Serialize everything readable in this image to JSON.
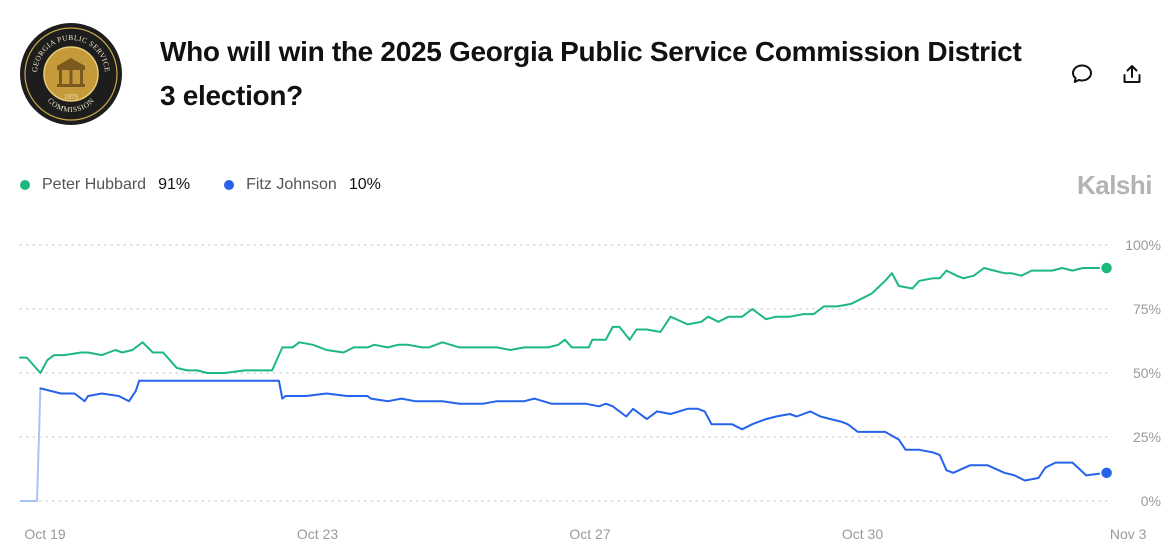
{
  "header": {
    "title": "Who will win the 2025 Georgia Public Service Commission District 3 election?",
    "seal": {
      "top_text": "GEORGIA PUBLIC SERVICE",
      "year": "1879",
      "bottom_text": "COMMISSION"
    }
  },
  "brand": "Kalshi",
  "actions": {
    "comment_icon": "comment-icon",
    "share_icon": "share-icon"
  },
  "legend": [
    {
      "name": "Peter Hubbard",
      "value": "91%",
      "color": "#1db87e"
    },
    {
      "name": "Fitz Johnson",
      "value": "10%",
      "color": "#2563eb"
    }
  ],
  "chart_data": {
    "type": "line",
    "title": "",
    "xlabel": "",
    "ylabel": "",
    "x_ticks": [
      {
        "label": "Oct 19",
        "day": 0
      },
      {
        "label": "Oct 23",
        "day": 4
      },
      {
        "label": "Oct 27",
        "day": 8
      },
      {
        "label": "Oct 30",
        "day": 12
      },
      {
        "label": "Nov 3",
        "day": 15.9
      }
    ],
    "y_ticks": [
      "100%",
      "75%",
      "50%",
      "25%",
      "0%"
    ],
    "xlim": [
      0,
      16
    ],
    "ylim": [
      0,
      100
    ],
    "grid": true,
    "series": [
      {
        "name": "Peter Hubbard",
        "color": "#1db87e",
        "x": [
          0,
          0.1,
          0.3,
          0.4,
          0.5,
          0.65,
          0.9,
          1.0,
          1.2,
          1.4,
          1.5,
          1.65,
          1.8,
          1.95,
          2.1,
          2.2,
          2.3,
          2.45,
          2.6,
          2.75,
          3.0,
          3.3,
          3.5,
          3.7,
          3.8,
          3.85,
          4.0,
          4.1,
          4.3,
          4.5,
          4.75,
          4.9,
          5.0,
          5.1,
          5.2,
          5.4,
          5.55,
          5.7,
          5.9,
          6.0,
          6.2,
          6.45,
          6.6,
          6.8,
          7.0,
          7.2,
          7.4,
          7.6,
          7.75,
          7.9,
          8.0,
          8.1,
          8.35,
          8.4,
          8.6,
          8.7,
          8.8,
          8.95,
          9.05,
          9.2,
          9.4,
          9.55,
          9.8,
          10.0,
          10.1,
          10.25,
          10.4,
          10.6,
          10.75,
          10.95,
          11.1,
          11.3,
          11.5,
          11.65,
          11.8,
          12.0,
          12.2,
          12.35,
          12.5,
          12.7,
          12.8,
          12.9,
          13.1,
          13.2,
          13.4,
          13.5,
          13.6,
          13.75,
          13.85,
          14.0,
          14.15,
          14.3,
          14.45,
          14.55,
          14.7,
          14.85,
          15.0,
          15.15,
          15.3,
          15.45,
          15.6,
          15.8,
          15.95
        ],
        "y": [
          56,
          56,
          50,
          55,
          57,
          57,
          58,
          58,
          57,
          59,
          58,
          59,
          62,
          58,
          58,
          55,
          52,
          51,
          51,
          50,
          50,
          51,
          51,
          51,
          57,
          60,
          60,
          62,
          61,
          59,
          58,
          60,
          60,
          60,
          61,
          60,
          61,
          61,
          60,
          60,
          62,
          60,
          60,
          60,
          60,
          59,
          60,
          60,
          60,
          61,
          63,
          60,
          60,
          63,
          63,
          68,
          68,
          63,
          67,
          67,
          66,
          72,
          69,
          70,
          72,
          70,
          72,
          72,
          75,
          71,
          72,
          72,
          73,
          73,
          76,
          76,
          77,
          79,
          81,
          86,
          89,
          84,
          83,
          86,
          87,
          87,
          90,
          88,
          87,
          88,
          91,
          90,
          89,
          89,
          88,
          90,
          90,
          90,
          91,
          90,
          91,
          91,
          91
        ]
      },
      {
        "name": "Fitz Johnson",
        "color": "#2563eb",
        "x": [
          0,
          0.25,
          0.3,
          0.45,
          0.6,
          0.8,
          0.95,
          1.0,
          1.2,
          1.45,
          1.6,
          1.7,
          1.75,
          1.9,
          2.1,
          2.3,
          2.5,
          2.75,
          3.0,
          3.5,
          3.8,
          3.85,
          3.9,
          4.0,
          4.2,
          4.5,
          4.8,
          5.0,
          5.1,
          5.15,
          5.4,
          5.6,
          5.8,
          6.0,
          6.2,
          6.45,
          6.6,
          6.8,
          7.0,
          7.2,
          7.4,
          7.55,
          7.8,
          8.0,
          8.1,
          8.3,
          8.5,
          8.6,
          8.7,
          8.9,
          9.0,
          9.2,
          9.35,
          9.55,
          9.8,
          9.95,
          10.05,
          10.15,
          10.3,
          10.45,
          10.6,
          10.75,
          10.95,
          11.1,
          11.3,
          11.4,
          11.6,
          11.75,
          11.9,
          12.05,
          12.15,
          12.3,
          12.5,
          12.7,
          12.9,
          13.0,
          13.2,
          13.4,
          13.5,
          13.6,
          13.7,
          13.95,
          14.05,
          14.2,
          14.45,
          14.6,
          14.75,
          14.95,
          15.05,
          15.2,
          15.35,
          15.45,
          15.65,
          15.95
        ],
        "y": [
          0,
          0,
          44,
          43,
          42,
          42,
          39,
          41,
          42,
          41,
          39,
          43,
          47,
          47,
          47,
          47,
          47,
          47,
          47,
          47,
          47,
          40,
          41,
          41,
          41,
          42,
          41,
          41,
          41,
          40,
          39,
          40,
          39,
          39,
          39,
          38,
          38,
          38,
          39,
          39,
          39,
          40,
          38,
          38,
          38,
          38,
          37,
          38,
          37,
          33,
          36,
          32,
          35,
          34,
          36,
          36,
          35,
          30,
          30,
          30,
          28,
          30,
          32,
          33,
          34,
          33,
          35,
          33,
          32,
          31,
          30,
          27,
          27,
          27,
          24,
          20,
          20,
          19,
          18,
          12,
          11,
          14,
          14,
          14,
          11,
          10,
          8,
          9,
          13,
          15,
          15,
          15,
          10,
          11
        ]
      }
    ]
  }
}
